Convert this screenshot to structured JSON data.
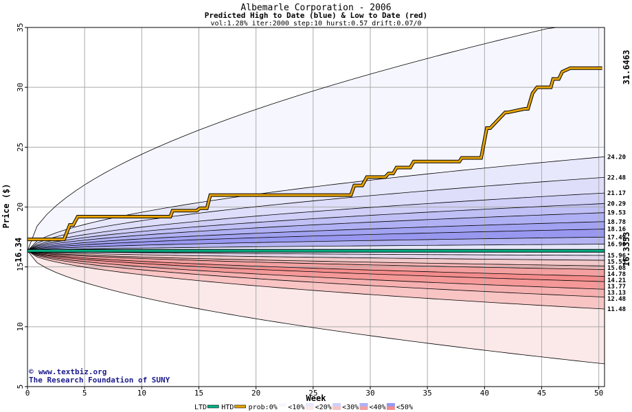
{
  "chart_data": {
    "type": "area",
    "title": "Albemarle Corporation - 2006",
    "subtitle": "Predicted High to Date (blue) &  Low to Date (red)",
    "params": "vol:1.28% iter:2000 step:10 hurst:0.57 drift:0.07/0",
    "xlabel": "Week",
    "ylabel": "Price ($)",
    "xlim": [
      0,
      50.5
    ],
    "ylim": [
      5,
      35
    ],
    "xticks": [
      0,
      5,
      10,
      15,
      20,
      25,
      30,
      35,
      40,
      45,
      50
    ],
    "yticks": [
      5,
      10,
      15,
      20,
      25,
      30,
      35
    ],
    "grid": true,
    "start_price": 16.34,
    "start_label": "16.34",
    "high_series": {
      "name": "HTD",
      "end_label": "31.6463",
      "x": [
        0,
        3.2,
        3.7,
        4,
        4.4,
        12.5,
        12.7,
        14.8,
        15.1,
        15.7,
        16,
        28.3,
        28.6,
        29.3,
        29.7,
        31.3,
        31.6,
        32,
        32.3,
        33.5,
        33.8,
        37.8,
        38,
        39.7,
        40.2,
        40.5,
        41.8,
        42,
        43.5,
        43.8,
        44.2,
        44.6,
        45.8,
        46,
        46.5,
        46.8,
        47.5,
        50.3
      ],
      "y": [
        17.3,
        17.3,
        18.5,
        18.5,
        19.2,
        19.2,
        19.7,
        19.7,
        19.9,
        19.9,
        21.0,
        21.0,
        21.8,
        21.8,
        22.5,
        22.5,
        22.8,
        22.8,
        23.3,
        23.3,
        23.8,
        23.8,
        24.1,
        24.1,
        26.6,
        26.6,
        27.9,
        27.9,
        28.2,
        28.2,
        29.5,
        30.0,
        30.0,
        30.7,
        30.7,
        31.3,
        31.6,
        31.6
      ]
    },
    "low_series": {
      "name": "LTD",
      "end_label": "16.3353",
      "x": [
        0,
        50.5
      ],
      "y": [
        16.34,
        16.34
      ]
    },
    "percentile_curves": [
      {
        "label": "",
        "end": 36.0
      },
      {
        "label": "24.20",
        "end": 24.2
      },
      {
        "label": "22.48",
        "end": 22.48
      },
      {
        "label": "21.17",
        "end": 21.17
      },
      {
        "label": "20.29",
        "end": 20.29
      },
      {
        "label": "19.53",
        "end": 19.53
      },
      {
        "label": "18.78",
        "end": 18.78
      },
      {
        "label": "18.16",
        "end": 18.16
      },
      {
        "label": "17.49",
        "end": 17.49
      },
      {
        "label": "16.90",
        "end": 16.9
      },
      {
        "label": "15.96",
        "end": 15.96
      },
      {
        "label": "15.55",
        "end": 15.55
      },
      {
        "label": "15.08",
        "end": 15.08
      },
      {
        "label": "14.78",
        "end": 14.78
      },
      {
        "label": "14.21",
        "end": 14.21
      },
      {
        "label": "13.77",
        "end": 13.77
      },
      {
        "label": "13.13",
        "end": 13.13
      },
      {
        "label": "12.48",
        "end": 12.48
      },
      {
        "label": "11.48",
        "end": 11.48
      },
      {
        "label": "",
        "end": 6.9
      }
    ],
    "band_colors_upper": [
      "#f6f6ff",
      "#e8e8fc",
      "#dedefa",
      "#cfcff8",
      "#c0c0f6",
      "#b0b0f4",
      "#a2a2f2",
      "#9898f0",
      "#b4b4f2"
    ],
    "band_colors_lower": [
      "#e4d4e8",
      "#f2c8c8",
      "#f4b4b4",
      "#f4a0a0",
      "#f48c8c",
      "#f49898",
      "#f6b0b0",
      "#f8c4c4",
      "#fbe8e8"
    ],
    "colors": {
      "high_line": "#e6a300",
      "low_line": "#00b386",
      "start_label": "#1a6b1a",
      "high_end_label": "#b08a00",
      "low_end_label": "#1a8a5a",
      "grid": "#aaaaaa"
    },
    "legend": {
      "items": [
        "LTD",
        "HTD",
        "prob:0%",
        "<10%",
        "<20%",
        "<30%",
        "<40%",
        "<50%"
      ],
      "placement": "bottom"
    }
  },
  "credit": {
    "site": "www.textbiz.org",
    "org": "The Research Foundation of SUNY",
    "copyright_symbol": "©"
  }
}
